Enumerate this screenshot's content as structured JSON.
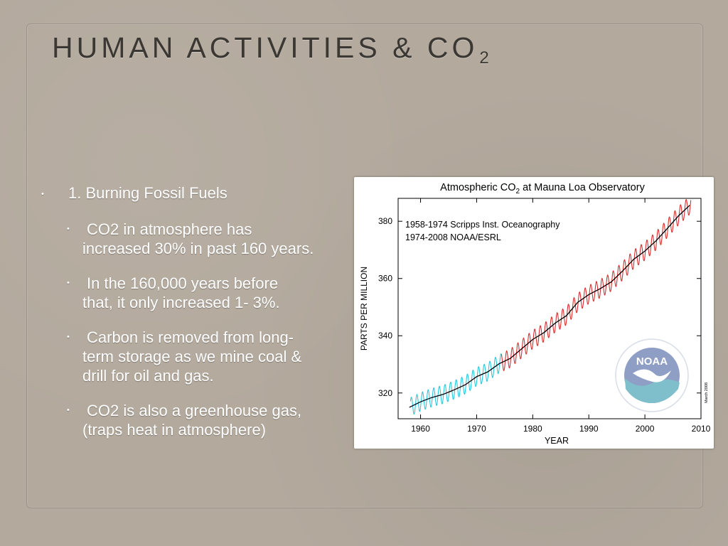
{
  "slide": {
    "title": "HUMAN ACTIVITIES & CO",
    "title_subscript": "2",
    "bullets": [
      {
        "text": "1. Burning Fossil Fuels",
        "sub": [
          {
            "line1": "CO2 in atmosphere has",
            "line2": "increased 30% in past 160 years."
          },
          {
            "line1": "In the 160,000 years before",
            "line2": "that, it only increased 1- 3%."
          },
          {
            "line1": "Carbon is removed from long-",
            "line2": "term storage as we mine coal &",
            "line3": "drill for oil and gas."
          },
          {
            "line1": "CO2 is also a greenhouse gas,",
            "line2": "(traps heat in atmosphere)"
          }
        ]
      }
    ]
  },
  "chart_data": {
    "type": "line",
    "title": "Atmospheric CO",
    "title_subscript": "2",
    "title_suffix": " at Mauna Loa Observatory",
    "xlabel": "YEAR",
    "ylabel": "PARTS PER MILLION",
    "xlim": [
      1956,
      2010
    ],
    "ylim": [
      311,
      388
    ],
    "xticks": [
      1960,
      1970,
      1980,
      1990,
      2000,
      2010
    ],
    "yticks": [
      320,
      340,
      360,
      380
    ],
    "annotations": [
      "1958-1974 Scripps Inst. Oceanography",
      "1974-2008 NOAA/ESRL"
    ],
    "logo_text": "NOAA",
    "side_note": "March 2008",
    "colors": {
      "scripps": "#29c8dc",
      "noaa": "#d93030",
      "trend": "#000000"
    },
    "trend_points": [
      {
        "x": 1958.0,
        "y": 315.0
      },
      {
        "x": 1960,
        "y": 316.9
      },
      {
        "x": 1962,
        "y": 318.4
      },
      {
        "x": 1964,
        "y": 319.5
      },
      {
        "x": 1966,
        "y": 321.1
      },
      {
        "x": 1968,
        "y": 322.9
      },
      {
        "x": 1970,
        "y": 325.7
      },
      {
        "x": 1972,
        "y": 327.4
      },
      {
        "x": 1974,
        "y": 330.2
      },
      {
        "x": 1976,
        "y": 332.1
      },
      {
        "x": 1978,
        "y": 335.4
      },
      {
        "x": 1980,
        "y": 338.7
      },
      {
        "x": 1982,
        "y": 341.1
      },
      {
        "x": 1984,
        "y": 344.4
      },
      {
        "x": 1986,
        "y": 347.0
      },
      {
        "x": 1988,
        "y": 351.6
      },
      {
        "x": 1990,
        "y": 354.4
      },
      {
        "x": 1992,
        "y": 356.4
      },
      {
        "x": 1994,
        "y": 358.8
      },
      {
        "x": 1996,
        "y": 362.6
      },
      {
        "x": 1998,
        "y": 366.7
      },
      {
        "x": 2000,
        "y": 369.6
      },
      {
        "x": 2002,
        "y": 373.2
      },
      {
        "x": 2004,
        "y": 377.5
      },
      {
        "x": 2006,
        "y": 381.9
      },
      {
        "x": 2008,
        "y": 385.6
      }
    ],
    "seasonal_amplitude_ppm": 3.2,
    "series": [
      {
        "name": "1958-1974 Scripps Inst. Oceanography",
        "x_range": [
          1958.2,
          1974.4
        ],
        "color": "#29c8dc"
      },
      {
        "name": "1974-2008 NOAA/ESRL",
        "x_range": [
          1974.4,
          2008.2
        ],
        "color": "#d93030"
      }
    ]
  }
}
